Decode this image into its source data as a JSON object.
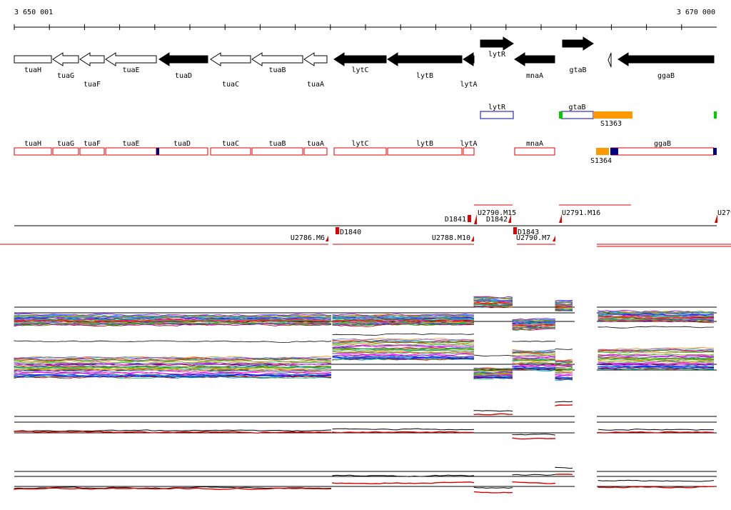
{
  "coordinates": {
    "start": "3 650 001",
    "end": "3 670 000"
  },
  "genes": [
    {
      "label": "tuaH",
      "x0": 20,
      "x1": 72,
      "dir": "none",
      "fill": "white",
      "row": "top"
    },
    {
      "label": "tuaG",
      "x0": 74,
      "x1": 110,
      "dir": "left",
      "fill": "white",
      "row": "bottom"
    },
    {
      "label": "tuaF",
      "x0": 112,
      "x1": 146,
      "dir": "left",
      "fill": "white",
      "row": "bottom2"
    },
    {
      "label": "tuaE",
      "x0": 148,
      "x1": 219,
      "dir": "left",
      "fill": "white",
      "row": "top"
    },
    {
      "label": "tuaD",
      "x0": 223,
      "x1": 291,
      "dir": "left",
      "fill": "black",
      "row": "bottom"
    },
    {
      "label": "tuaC",
      "x0": 295,
      "x1": 351,
      "dir": "left",
      "fill": "white",
      "row": "bottom2"
    },
    {
      "label": "tuaB",
      "x0": 353,
      "x1": 424,
      "dir": "left",
      "fill": "white",
      "row": "top"
    },
    {
      "label": "tuaA",
      "x0": 426,
      "x1": 458,
      "dir": "left",
      "fill": "white",
      "row": "bottom2"
    },
    {
      "label": "lytC",
      "x0": 468,
      "x1": 541,
      "dir": "left",
      "fill": "black",
      "row": "top"
    },
    {
      "label": "lytB",
      "x0": 543,
      "x1": 647,
      "dir": "left",
      "fill": "black",
      "row": "bottom"
    },
    {
      "label": "lytA",
      "x0": 649,
      "x1": 664,
      "dir": "left",
      "fill": "black",
      "row": "bottom2"
    },
    {
      "label": "lytR",
      "x0": 673,
      "x1": 719,
      "dir": "right",
      "fill": "black",
      "row": "above"
    },
    {
      "label": "mnaA",
      "x0": 721,
      "x1": 777,
      "dir": "left",
      "fill": "black",
      "row": "bottom"
    },
    {
      "label": "gtaB",
      "x0": 788,
      "x1": 831,
      "dir": "right",
      "fill": "black",
      "row": "above2"
    },
    {
      "label": "ggaB",
      "x0": 866,
      "x1": 1000,
      "dir": "left",
      "fill": "black",
      "row": "bottom"
    }
  ],
  "annotations": [
    {
      "label": "lytR",
      "x0": 673,
      "x1": 719,
      "color": "blue"
    },
    {
      "label": "gtaB",
      "x0": 786,
      "x1": 831,
      "color": "blue"
    },
    {
      "label": "S1363"
    }
  ],
  "rna_features": [
    {
      "label": "tuaH",
      "x0": 20,
      "x1": 72
    },
    {
      "label": "tuaG",
      "x0": 74,
      "x1": 110
    },
    {
      "label": "tuaF",
      "x0": 112,
      "x1": 146
    },
    {
      "label": "tuaE",
      "x0": 148,
      "x1": 219
    },
    {
      "label": "tuaD",
      "x0": 219,
      "x1": 291
    },
    {
      "label": "tuaC",
      "x0": 295,
      "x1": 351
    },
    {
      "label": "tuaB",
      "x0": 353,
      "x1": 424
    },
    {
      "label": "tuaA",
      "x0": 426,
      "x1": 458
    },
    {
      "label": "lytC",
      "x0": 468,
      "x1": 541
    },
    {
      "label": "lytB",
      "x0": 543,
      "x1": 647
    },
    {
      "label": "lytA",
      "x0": 649,
      "x1": 664
    },
    {
      "label": "mnaA",
      "x0": 721,
      "x1": 777
    },
    {
      "label": "ggaB",
      "x0": 856,
      "x1": 1000
    },
    {
      "label": "S1364"
    }
  ],
  "segments": {
    "upper": [
      "U2791.M16",
      "U2790.M15",
      "U279"
    ],
    "upper_markers": [
      "D1841",
      "D1842"
    ],
    "lower": [
      "U2786.M6",
      "U2788.M10",
      "U2790.M7"
    ],
    "lower_markers": [
      "D1840",
      "D1843"
    ]
  },
  "colors": {
    "red": "#e00000",
    "blue": "#0000cc",
    "orange": "#ff9900",
    "green": "#00cc00",
    "navy": "#000080"
  }
}
